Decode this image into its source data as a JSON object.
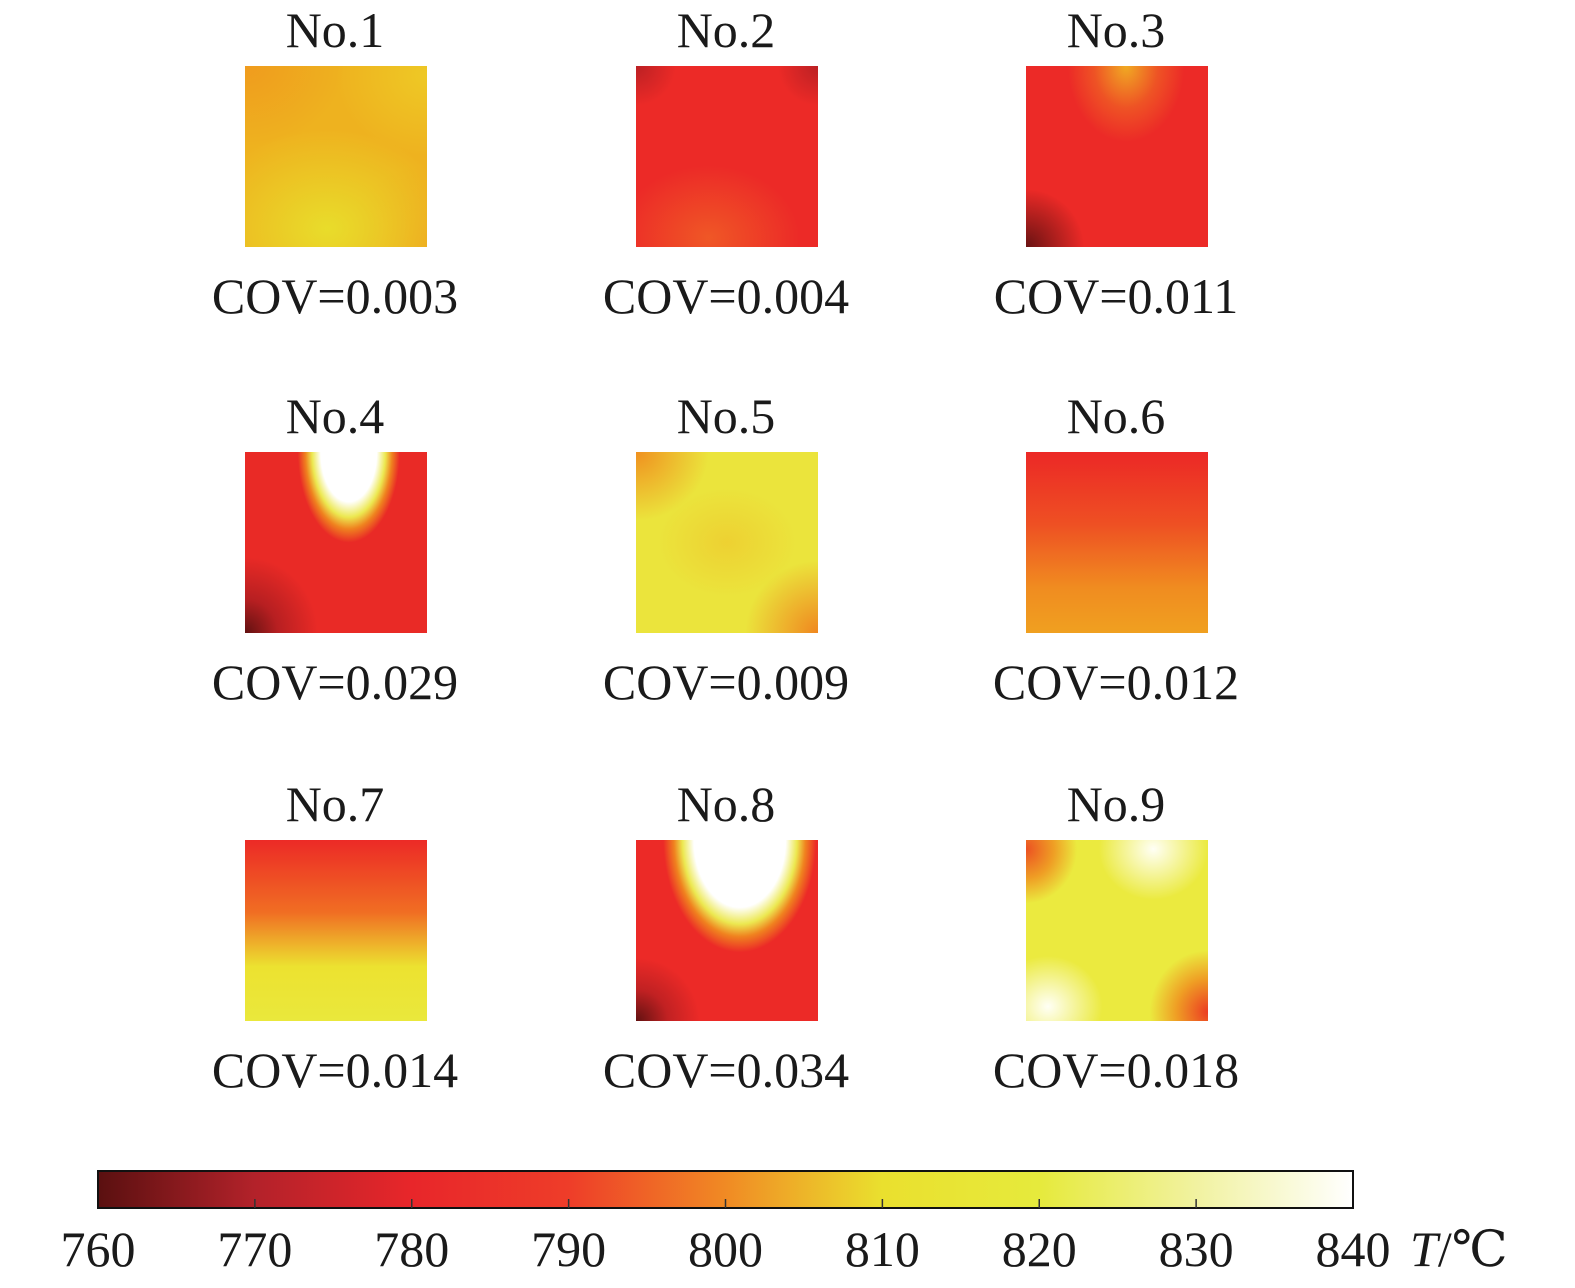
{
  "chart_data": {
    "type": "heatmap",
    "panels": [
      {
        "title": "No.1",
        "cov": "COV=0.003",
        "base": "#eeb21f",
        "blobs": []
      },
      {
        "title": "No.2",
        "cov": "COV=0.004",
        "base": "#ec2a27",
        "blobs": []
      },
      {
        "title": "No.3",
        "cov": "COV=0.011",
        "base": "#ec2a27",
        "blobs": []
      },
      {
        "title": "No.4",
        "cov": "COV=0.029",
        "base": "#e92a26",
        "blobs": []
      },
      {
        "title": "No.5",
        "cov": "COV=0.009",
        "base": "#ebe43c",
        "blobs": []
      },
      {
        "title": "No.6",
        "cov": "COV=0.012",
        "base": "#ec3a26",
        "blobs": []
      },
      {
        "title": "No.7",
        "cov": "COV=0.014",
        "base": "#ee4a25",
        "blobs": []
      },
      {
        "title": "No.8",
        "cov": "COV=0.034",
        "base": "#ec2a27",
        "blobs": []
      },
      {
        "title": "No.9",
        "cov": "COV=0.018",
        "base": "#ebea3f",
        "blobs": []
      }
    ],
    "colorbar": {
      "min": 760,
      "max": 840,
      "ticks": [
        760,
        770,
        780,
        790,
        800,
        810,
        820,
        830,
        840
      ],
      "stops": [
        "#5a1010",
        "#b3222a",
        "#e8262a",
        "#ee3d29",
        "#f08a24",
        "#eae02e",
        "#e6ea3c",
        "#f1f2a0",
        "#ffffff"
      ]
    }
  },
  "unit_symbol": "T",
  "unit_suffix": "/℃"
}
